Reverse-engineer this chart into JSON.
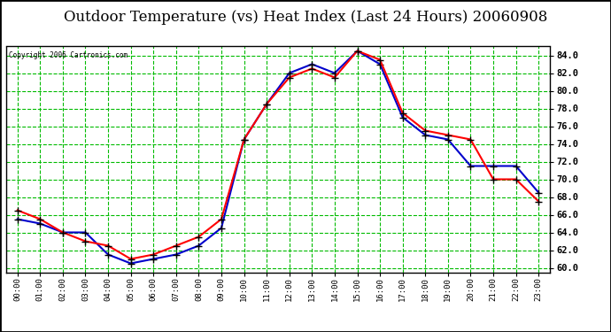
{
  "title": "Outdoor Temperature (vs) Heat Index (Last 24 Hours) 20060908",
  "copyright_text": "Copyright 2006 Cartronics.com",
  "hours": [
    "00:00",
    "01:00",
    "02:00",
    "03:00",
    "04:00",
    "05:00",
    "06:00",
    "07:00",
    "08:00",
    "09:00",
    "10:00",
    "11:00",
    "12:00",
    "13:00",
    "14:00",
    "15:00",
    "16:00",
    "17:00",
    "18:00",
    "19:00",
    "20:00",
    "21:00",
    "22:00",
    "23:00"
  ],
  "temp": [
    66.5,
    65.5,
    64.0,
    63.0,
    62.5,
    61.0,
    61.5,
    62.5,
    63.5,
    65.5,
    74.5,
    78.5,
    81.5,
    82.5,
    81.5,
    84.5,
    83.5,
    77.5,
    75.5,
    75.0,
    74.5,
    70.0,
    70.0,
    67.5
  ],
  "heat_index": [
    65.5,
    65.0,
    64.0,
    64.0,
    61.5,
    60.5,
    61.0,
    61.5,
    62.5,
    64.5,
    74.5,
    78.5,
    82.0,
    83.0,
    82.0,
    84.5,
    83.0,
    77.0,
    75.0,
    74.5,
    71.5,
    71.5,
    71.5,
    68.5
  ],
  "temp_color": "#FF0000",
  "heat_index_color": "#0000CC",
  "bg_color": "#FFFFFF",
  "plot_bg_color": "#FFFFFF",
  "grid_color": "#00BB00",
  "ylim": [
    59.5,
    85.0
  ],
  "ytick_vals": [
    60.0,
    62.0,
    64.0,
    66.0,
    68.0,
    70.0,
    72.0,
    74.0,
    76.0,
    78.0,
    80.0,
    82.0,
    84.0
  ],
  "title_fontsize": 12,
  "marker": "+",
  "marker_size": 6,
  "marker_color": "#000000",
  "line_width": 1.5
}
